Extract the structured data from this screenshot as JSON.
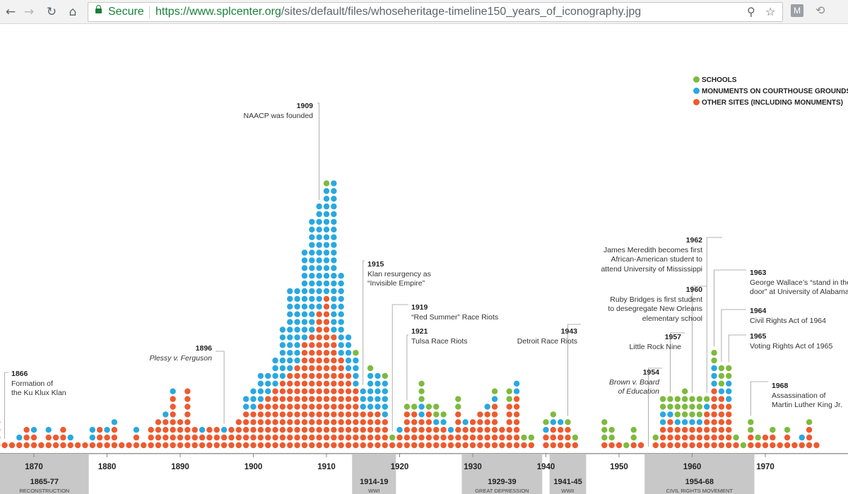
{
  "browser": {
    "secure_label": "Secure",
    "url_host": "https://www.splcenter.org",
    "url_path": "/sites/default/files/whoseheritage-timeline150_years_of_iconography.jpg",
    "icons": [
      "back-icon",
      "forward-icon",
      "reload-icon",
      "home-icon",
      "lock-icon",
      "zoom-icon",
      "star-icon",
      "extension-m-icon",
      "history-icon"
    ]
  },
  "legend": {
    "schools": "SCHOOLS",
    "courthouse": "MONUMENTS ON COURTHOUSE GROUNDS",
    "other": "OTHER SITES (INCLUDING MONUMENTS)"
  },
  "annotations": {
    "a1866": {
      "year": "1866",
      "l1": "Formation of",
      "l2": "the Ku Klux Klan"
    },
    "a1896": {
      "year": "1896",
      "l1": "Plessy v. Ferguson"
    },
    "a1909": {
      "year": "1909",
      "l1": "NAACP was founded"
    },
    "a1915": {
      "year": "1915",
      "l1": "Klan resurgency as",
      "l2": "“Invisible Empire”"
    },
    "a1919": {
      "year": "1919",
      "l1": "“Red Summer” Race Riots"
    },
    "a1921": {
      "year": "1921",
      "l1": "Tulsa Race Riots"
    },
    "a1943": {
      "year": "1943",
      "l1": "Detroit Race Riots"
    },
    "a1954": {
      "year": "1954",
      "l1": "Brown v. Board",
      "l2": "of Education"
    },
    "a1957": {
      "year": "1957",
      "l1": "Little Rock Nine"
    },
    "a1960": {
      "year": "1960",
      "l1": "Ruby Bridges is first student",
      "l2": "to desegregate New Orleans",
      "l3": "elementary school"
    },
    "a1962": {
      "year": "1962",
      "l1": "James Meredith becomes first",
      "l2": "African-American student to",
      "l3": "attend University of Mississippi"
    },
    "a1963": {
      "year": "1963",
      "l1": "George Wallace’s “stand in the sc",
      "l2": "door” at University of Alabama"
    },
    "a1964": {
      "year": "1964",
      "l1": "Civil Rights Act of 1964"
    },
    "a1965": {
      "year": "1965",
      "l1": "Voting Rights Act of 1965"
    },
    "a1968": {
      "year": "1968",
      "l1": "Assassination of",
      "l2": "Martin Luther King Jr."
    }
  },
  "chart_data": {
    "type": "scatter",
    "colors": {
      "schools": "#7dba3e",
      "courthouse": "#29a8e0",
      "other": "#ee5a2f",
      "band": "#c8c8c8"
    },
    "x_ticks": [
      "1870",
      "1880",
      "1890",
      "1900",
      "1910",
      "1920",
      "1930",
      "1940",
      "1950",
      "1960",
      "1970"
    ],
    "x_tick_years": [
      1870,
      1880,
      1890,
      1900,
      1910,
      1920,
      1930,
      1940,
      1950,
      1960,
      1970
    ],
    "periods": [
      {
        "start": 1865,
        "end": 1877,
        "range": "1865-77",
        "name": "RECONSTRUCTION"
      },
      {
        "start": 1914,
        "end": 1919,
        "range": "1914-19",
        "name": "WWI"
      },
      {
        "start": 1929,
        "end": 1939,
        "range": "1929-39",
        "name": "GREAT DEPRESSION"
      },
      {
        "start": 1941,
        "end": 1945,
        "range": "1941-45",
        "name": "WWII"
      },
      {
        "start": 1954,
        "end": 1968,
        "range": "1954-68",
        "name": "CIVIL RIGHTS MOVEMENT"
      }
    ],
    "years": [
      {
        "year": 1865,
        "other": 4,
        "courthouse": 0,
        "schools": 0
      },
      {
        "year": 1866,
        "other": 1,
        "courthouse": 0,
        "schools": 0
      },
      {
        "year": 1867,
        "other": 1,
        "courthouse": 0,
        "schools": 0
      },
      {
        "year": 1868,
        "other": 1,
        "courthouse": 1,
        "schools": 0
      },
      {
        "year": 1869,
        "other": 3,
        "courthouse": 0,
        "schools": 0
      },
      {
        "year": 1870,
        "other": 2,
        "courthouse": 1,
        "schools": 0
      },
      {
        "year": 1871,
        "other": 1,
        "courthouse": 0,
        "schools": 0
      },
      {
        "year": 1872,
        "other": 2,
        "courthouse": 1,
        "schools": 0
      },
      {
        "year": 1873,
        "other": 2,
        "courthouse": 0,
        "schools": 0
      },
      {
        "year": 1874,
        "other": 3,
        "courthouse": 0,
        "schools": 0
      },
      {
        "year": 1875,
        "other": 1,
        "courthouse": 1,
        "schools": 0
      },
      {
        "year": 1876,
        "other": 1,
        "courthouse": 0,
        "schools": 0
      },
      {
        "year": 1877,
        "other": 1,
        "courthouse": 0,
        "schools": 0
      },
      {
        "year": 1878,
        "other": 1,
        "courthouse": 2,
        "schools": 0
      },
      {
        "year": 1879,
        "other": 3,
        "courthouse": 0,
        "schools": 0
      },
      {
        "year": 1880,
        "other": 2,
        "courthouse": 1,
        "schools": 0
      },
      {
        "year": 1881,
        "other": 3,
        "courthouse": 1,
        "schools": 0
      },
      {
        "year": 1882,
        "other": 1,
        "courthouse": 0,
        "schools": 0
      },
      {
        "year": 1883,
        "other": 1,
        "courthouse": 0,
        "schools": 0
      },
      {
        "year": 1884,
        "other": 2,
        "courthouse": 1,
        "schools": 0
      },
      {
        "year": 1885,
        "other": 1,
        "courthouse": 0,
        "schools": 0
      },
      {
        "year": 1886,
        "other": 3,
        "courthouse": 0,
        "schools": 0
      },
      {
        "year": 1887,
        "other": 4,
        "courthouse": 0,
        "schools": 0
      },
      {
        "year": 1888,
        "other": 4,
        "courthouse": 1,
        "schools": 0
      },
      {
        "year": 1889,
        "other": 7,
        "courthouse": 1,
        "schools": 0
      },
      {
        "year": 1890,
        "other": 4,
        "courthouse": 0,
        "schools": 0
      },
      {
        "year": 1891,
        "other": 8,
        "courthouse": 0,
        "schools": 0
      },
      {
        "year": 1892,
        "other": 3,
        "courthouse": 0,
        "schools": 0
      },
      {
        "year": 1893,
        "other": 2,
        "courthouse": 1,
        "schools": 0
      },
      {
        "year": 1894,
        "other": 3,
        "courthouse": 0,
        "schools": 0
      },
      {
        "year": 1895,
        "other": 3,
        "courthouse": 0,
        "schools": 0
      },
      {
        "year": 1896,
        "other": 2,
        "courthouse": 1,
        "schools": 0
      },
      {
        "year": 1897,
        "other": 3,
        "courthouse": 0,
        "schools": 0
      },
      {
        "year": 1898,
        "other": 4,
        "courthouse": 0,
        "schools": 0
      },
      {
        "year": 1899,
        "other": 5,
        "courthouse": 2,
        "schools": 0
      },
      {
        "year": 1900,
        "other": 5,
        "courthouse": 3,
        "schools": 0
      },
      {
        "year": 1901,
        "other": 6,
        "courthouse": 4,
        "schools": 0
      },
      {
        "year": 1902,
        "other": 7,
        "courthouse": 3,
        "schools": 0
      },
      {
        "year": 1903,
        "other": 8,
        "courthouse": 4,
        "schools": 0
      },
      {
        "year": 1904,
        "other": 9,
        "courthouse": 7,
        "schools": 0
      },
      {
        "year": 1905,
        "other": 10,
        "courthouse": 11,
        "schools": 0
      },
      {
        "year": 1906,
        "other": 11,
        "courthouse": 10,
        "schools": 0
      },
      {
        "year": 1907,
        "other": 14,
        "courthouse": 12,
        "schools": 0
      },
      {
        "year": 1908,
        "other": 15,
        "courthouse": 15,
        "schools": 0
      },
      {
        "year": 1909,
        "other": 18,
        "courthouse": 14,
        "schools": 0
      },
      {
        "year": 1910,
        "other": 20,
        "courthouse": 14,
        "schools": 1
      },
      {
        "year": 1911,
        "other": 15,
        "courthouse": 20,
        "schools": 0
      },
      {
        "year": 1912,
        "other": 12,
        "courthouse": 11,
        "schools": 0
      },
      {
        "year": 1913,
        "other": 10,
        "courthouse": 5,
        "schools": 0
      },
      {
        "year": 1914,
        "other": 8,
        "courthouse": 4,
        "schools": 1
      },
      {
        "year": 1915,
        "other": 5,
        "courthouse": 3,
        "schools": 0
      },
      {
        "year": 1916,
        "other": 5,
        "courthouse": 5,
        "schools": 1
      },
      {
        "year": 1917,
        "other": 5,
        "courthouse": 5,
        "schools": 0
      },
      {
        "year": 1918,
        "other": 4,
        "courthouse": 5,
        "schools": 1
      },
      {
        "year": 1919,
        "other": 1,
        "courthouse": 0,
        "schools": 1
      },
      {
        "year": 1920,
        "other": 2,
        "courthouse": 1,
        "schools": 0
      },
      {
        "year": 1921,
        "other": 5,
        "courthouse": 0,
        "schools": 1
      },
      {
        "year": 1922,
        "other": 5,
        "courthouse": 0,
        "schools": 1
      },
      {
        "year": 1923,
        "other": 4,
        "courthouse": 2,
        "schools": 3
      },
      {
        "year": 1924,
        "other": 5,
        "courthouse": 0,
        "schools": 1
      },
      {
        "year": 1925,
        "other": 3,
        "courthouse": 1,
        "schools": 2
      },
      {
        "year": 1926,
        "other": 3,
        "courthouse": 1,
        "schools": 1
      },
      {
        "year": 1927,
        "other": 2,
        "courthouse": 1,
        "schools": 0
      },
      {
        "year": 1928,
        "other": 5,
        "courthouse": 0,
        "schools": 2
      },
      {
        "year": 1929,
        "other": 3,
        "courthouse": 1,
        "schools": 0
      },
      {
        "year": 1930,
        "other": 4,
        "courthouse": 0,
        "schools": 0
      },
      {
        "year": 1931,
        "other": 5,
        "courthouse": 0,
        "schools": 0
      },
      {
        "year": 1932,
        "other": 5,
        "courthouse": 1,
        "schools": 0
      },
      {
        "year": 1933,
        "other": 6,
        "courthouse": 1,
        "schools": 1
      },
      {
        "year": 1934,
        "other": 3,
        "courthouse": 0,
        "schools": 0
      },
      {
        "year": 1935,
        "other": 6,
        "courthouse": 0,
        "schools": 2
      },
      {
        "year": 1936,
        "other": 7,
        "courthouse": 2,
        "schools": 0
      },
      {
        "year": 1937,
        "other": 1,
        "courthouse": 0,
        "schools": 1
      },
      {
        "year": 1938,
        "other": 1,
        "courthouse": 0,
        "schools": 1
      },
      {
        "year": 1939,
        "other": 0,
        "courthouse": 0,
        "schools": 0
      },
      {
        "year": 1940,
        "other": 2,
        "courthouse": 1,
        "schools": 1
      },
      {
        "year": 1941,
        "other": 3,
        "courthouse": 1,
        "schools": 1
      },
      {
        "year": 1942,
        "other": 3,
        "courthouse": 1,
        "schools": 0
      },
      {
        "year": 1943,
        "other": 3,
        "courthouse": 0,
        "schools": 1
      },
      {
        "year": 1944,
        "other": 1,
        "courthouse": 0,
        "schools": 1
      },
      {
        "year": 1948,
        "other": 1,
        "courthouse": 0,
        "schools": 3
      },
      {
        "year": 1949,
        "other": 1,
        "courthouse": 0,
        "schools": 2
      },
      {
        "year": 1950,
        "other": 1,
        "courthouse": 0,
        "schools": 0
      },
      {
        "year": 1951,
        "other": 0,
        "courthouse": 0,
        "schools": 1
      },
      {
        "year": 1952,
        "other": 1,
        "courthouse": 0,
        "schools": 2
      },
      {
        "year": 1953,
        "other": 1,
        "courthouse": 0,
        "schools": 0
      },
      {
        "year": 1955,
        "other": 1,
        "courthouse": 0,
        "schools": 1
      },
      {
        "year": 1956,
        "other": 3,
        "courthouse": 2,
        "schools": 2
      },
      {
        "year": 1957,
        "other": 4,
        "courthouse": 1,
        "schools": 2
      },
      {
        "year": 1958,
        "other": 3,
        "courthouse": 1,
        "schools": 3
      },
      {
        "year": 1959,
        "other": 3,
        "courthouse": 1,
        "schools": 4
      },
      {
        "year": 1960,
        "other": 3,
        "courthouse": 1,
        "schools": 3
      },
      {
        "year": 1961,
        "other": 3,
        "courthouse": 1,
        "schools": 3
      },
      {
        "year": 1962,
        "other": 5,
        "courthouse": 1,
        "schools": 1
      },
      {
        "year": 1963,
        "other": 8,
        "courthouse": 3,
        "schools": 2
      },
      {
        "year": 1964,
        "other": 7,
        "courthouse": 1,
        "schools": 3
      },
      {
        "year": 1965,
        "other": 6,
        "courthouse": 3,
        "schools": 2
      },
      {
        "year": 1966,
        "other": 1,
        "courthouse": 0,
        "schools": 1
      },
      {
        "year": 1967,
        "other": 0,
        "courthouse": 0,
        "schools": 1
      },
      {
        "year": 1968,
        "other": 2,
        "courthouse": 0,
        "schools": 2
      },
      {
        "year": 1969,
        "other": 1,
        "courthouse": 0,
        "schools": 1
      },
      {
        "year": 1970,
        "other": 2,
        "courthouse": 0,
        "schools": 0
      },
      {
        "year": 1971,
        "other": 2,
        "courthouse": 0,
        "schools": 1
      },
      {
        "year": 1972,
        "other": 1,
        "courthouse": 0,
        "schools": 0
      },
      {
        "year": 1973,
        "other": 2,
        "courthouse": 0,
        "schools": 1
      },
      {
        "year": 1974,
        "other": 1,
        "courthouse": 0,
        "schools": 0
      },
      {
        "year": 1975,
        "other": 1,
        "courthouse": 1,
        "schools": 0
      },
      {
        "year": 1976,
        "other": 3,
        "courthouse": 0,
        "schools": 1
      },
      {
        "year": 1977,
        "other": 1,
        "courthouse": 0,
        "schools": 0
      }
    ]
  }
}
